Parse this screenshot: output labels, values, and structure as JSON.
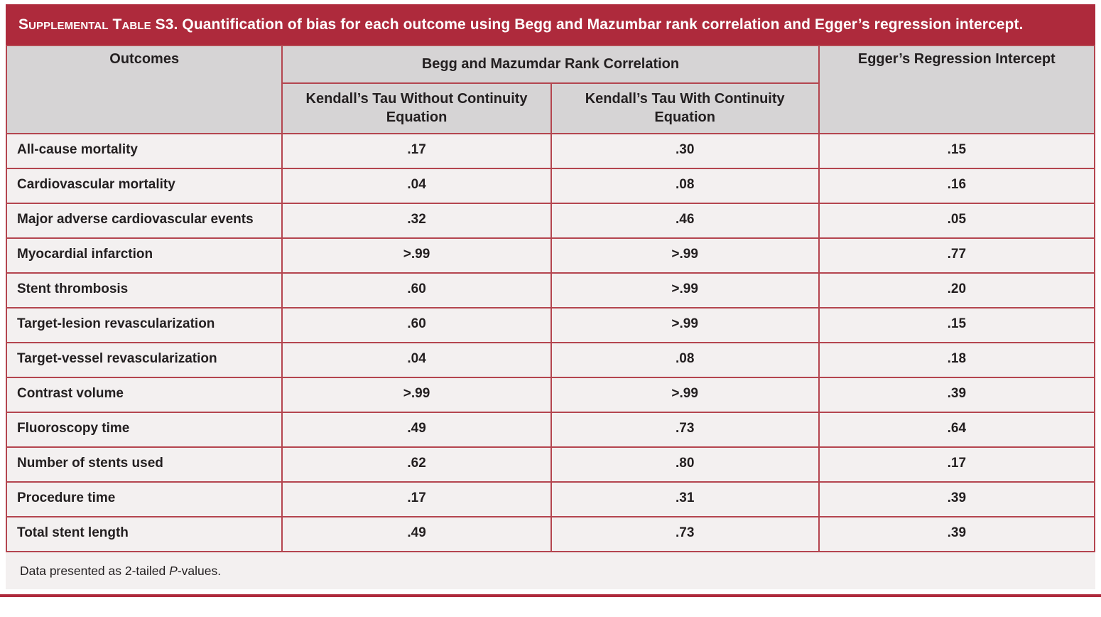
{
  "page": {
    "title_smallcaps": "Supplemental Table S3.",
    "title_rest": " Quantification of bias for each outcome using Begg and Mazumbar rank correlation and Egger’s regression intercept."
  },
  "table": {
    "header": {
      "outcomes": "Outcomes",
      "begg_group": "Begg and Mazumdar Rank Correlation",
      "egger": "Egger’s Regression Intercept",
      "sub_without": "Kendall’s Tau Without Continuity Equation",
      "sub_with": "Kendall’s Tau With Continuity Equation"
    },
    "rows": [
      {
        "outcome": "All-cause mortality",
        "tau_without": ".17",
        "tau_with": ".30",
        "egger": ".15"
      },
      {
        "outcome": "Cardiovascular mortality",
        "tau_without": ".04",
        "tau_with": ".08",
        "egger": ".16"
      },
      {
        "outcome": "Major adverse cardiovascular events",
        "tau_without": ".32",
        "tau_with": ".46",
        "egger": ".05"
      },
      {
        "outcome": "Myocardial infarction",
        "tau_without": ">.99",
        "tau_with": ">.99",
        "egger": ".77"
      },
      {
        "outcome": "Stent thrombosis",
        "tau_without": ".60",
        "tau_with": ">.99",
        "egger": ".20"
      },
      {
        "outcome": "Target-lesion revascularization",
        "tau_without": ".60",
        "tau_with": ">.99",
        "egger": ".15"
      },
      {
        "outcome": "Target-vessel revascularization",
        "tau_without": ".04",
        "tau_with": ".08",
        "egger": ".18"
      },
      {
        "outcome": "Contrast volume",
        "tau_without": ">.99",
        "tau_with": ">.99",
        "egger": ".39"
      },
      {
        "outcome": "Fluoroscopy time",
        "tau_without": ".49",
        "tau_with": ".73",
        "egger": ".64"
      },
      {
        "outcome": "Number of stents used",
        "tau_without": ".62",
        "tau_with": ".80",
        "egger": ".17"
      },
      {
        "outcome": "Procedure time",
        "tau_without": ".17",
        "tau_with": ".31",
        "egger": ".39"
      },
      {
        "outcome": "Total stent length",
        "tau_without": ".49",
        "tau_with": ".73",
        "egger": ".39"
      }
    ],
    "footnote": {
      "prefix": "Data presented as 2-tailed ",
      "italic": "P",
      "suffix": "-values."
    }
  },
  "colors": {
    "title_bar": "#AE2A3C",
    "border": "#B4454F",
    "header_bg": "#D6D4D5",
    "body_bg": "#F3F0F0",
    "text": "#231F20"
  }
}
